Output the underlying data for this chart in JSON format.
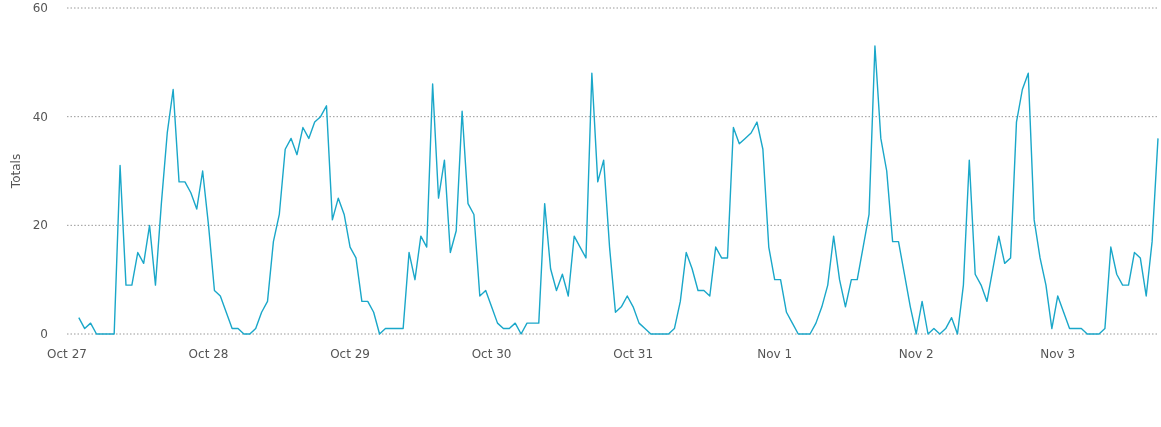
{
  "chart_data": {
    "type": "line",
    "ylabel": "Totals",
    "categories": [
      "Oct 27",
      null,
      null,
      null,
      null,
      null,
      null,
      null,
      null,
      null,
      null,
      null,
      null,
      null,
      null,
      null,
      null,
      null,
      null,
      null,
      null,
      null,
      null,
      null,
      "Oct 28",
      null,
      null,
      null,
      null,
      null,
      null,
      null,
      null,
      null,
      null,
      null,
      null,
      null,
      null,
      null,
      null,
      null,
      null,
      null,
      null,
      null,
      null,
      null,
      "Oct 29",
      null,
      null,
      null,
      null,
      null,
      null,
      null,
      null,
      null,
      null,
      null,
      null,
      null,
      null,
      null,
      null,
      null,
      null,
      null,
      null,
      null,
      null,
      null,
      "Oct 30",
      null,
      null,
      null,
      null,
      null,
      null,
      null,
      null,
      null,
      null,
      null,
      null,
      null,
      null,
      null,
      null,
      null,
      null,
      null,
      null,
      null,
      null,
      null,
      "Oct 31",
      null,
      null,
      null,
      null,
      null,
      null,
      null,
      null,
      null,
      null,
      null,
      null,
      null,
      null,
      null,
      null,
      null,
      null,
      null,
      null,
      null,
      null,
      null,
      "Nov 1",
      null,
      null,
      null,
      null,
      null,
      null,
      null,
      null,
      null,
      null,
      null,
      null,
      null,
      null,
      null,
      null,
      null,
      null,
      null,
      null,
      null,
      null,
      null,
      "Nov 2",
      null,
      null,
      null,
      null,
      null,
      null,
      null,
      null,
      null,
      null,
      null,
      null,
      null,
      null,
      null,
      null,
      null,
      null,
      null,
      null,
      null,
      null,
      null,
      "Nov 3",
      null,
      null,
      null,
      null,
      null,
      null,
      null,
      null,
      null,
      null,
      null,
      null,
      null,
      null,
      null,
      null,
      null
    ],
    "series": [
      {
        "color": "#1aa7c9",
        "values": [
          null,
          null,
          3,
          1,
          2,
          0,
          0,
          0,
          0,
          31,
          9,
          9,
          15,
          13,
          20,
          9,
          24,
          37,
          45,
          28,
          28,
          26,
          23,
          30,
          20,
          8,
          7,
          4,
          1,
          1,
          0,
          0,
          1,
          4,
          6,
          17,
          22,
          34,
          36,
          33,
          38,
          36,
          39,
          40,
          42,
          21,
          25,
          22,
          16,
          14,
          6,
          6,
          4,
          0,
          1,
          1,
          1,
          1,
          15,
          10,
          18,
          16,
          46,
          25,
          32,
          15,
          19,
          41,
          24,
          22,
          7,
          8,
          5,
          2,
          1,
          1,
          2,
          0,
          2,
          2,
          2,
          24,
          12,
          8,
          11,
          7,
          18,
          16,
          14,
          48,
          28,
          32,
          16,
          4,
          5,
          7,
          5,
          2,
          1,
          0,
          0,
          0,
          0,
          1,
          6,
          15,
          12,
          8,
          8,
          7,
          16,
          14,
          14,
          38,
          35,
          36,
          37,
          39,
          34,
          16,
          10,
          10,
          4,
          2,
          0,
          0,
          0,
          2,
          5,
          9,
          18,
          10,
          5,
          10,
          10,
          16,
          22,
          53,
          36,
          30,
          17,
          17,
          11,
          5,
          0,
          6,
          0,
          1,
          0,
          1,
          3,
          0,
          9,
          32,
          11,
          9,
          6,
          12,
          18,
          13,
          14,
          39,
          45,
          48,
          21,
          14,
          9,
          1,
          7,
          4,
          1,
          1,
          1,
          0,
          0,
          0,
          1,
          16,
          11,
          9,
          9,
          15,
          14,
          7,
          17,
          36
        ]
      }
    ],
    "ylim": [
      0,
      60
    ],
    "yticks": [
      0,
      20,
      40,
      60
    ],
    "grid": "y",
    "marker": "none",
    "line_style": "solid"
  }
}
